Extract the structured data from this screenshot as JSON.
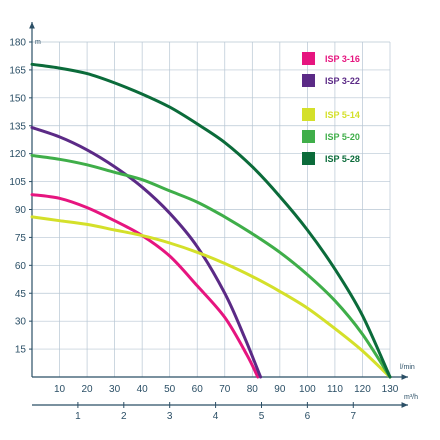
{
  "chart_data": {
    "type": "line",
    "grid": true,
    "legend_position": "top-right",
    "y_unit": "m",
    "x_unit_primary": "l/min",
    "x_unit_secondary": "m³/h",
    "ylim": [
      0,
      180
    ],
    "xlim": [
      0,
      130
    ],
    "y_ticks": [
      "15",
      "30",
      "45",
      "60",
      "75",
      "90",
      "105",
      "120",
      "135",
      "150",
      "165",
      "180"
    ],
    "x_ticks_primary": [
      "10",
      "20",
      "30",
      "40",
      "50",
      "60",
      "70",
      "80",
      "90",
      "100",
      "110",
      "120",
      "130"
    ],
    "x_ticks_secondary": [
      "1",
      "2",
      "3",
      "4",
      "5",
      "6",
      "7"
    ],
    "series": [
      {
        "name": "ISP 3-16",
        "color": "#e6157f",
        "points": [
          [
            0,
            98
          ],
          [
            10,
            96
          ],
          [
            20,
            91
          ],
          [
            30,
            84
          ],
          [
            40,
            76
          ],
          [
            50,
            65
          ],
          [
            60,
            49
          ],
          [
            70,
            32
          ],
          [
            78,
            12
          ],
          [
            82,
            0
          ]
        ]
      },
      {
        "name": "ISP 3-22",
        "color": "#5b2a86",
        "points": [
          [
            0,
            134
          ],
          [
            10,
            129
          ],
          [
            20,
            122
          ],
          [
            30,
            113
          ],
          [
            40,
            102
          ],
          [
            50,
            88
          ],
          [
            60,
            70
          ],
          [
            70,
            45
          ],
          [
            77,
            22
          ],
          [
            83,
            0
          ]
        ]
      },
      {
        "name": "ISP 5-14",
        "color": "#d4e02a",
        "points": [
          [
            0,
            86
          ],
          [
            10,
            84
          ],
          [
            20,
            82
          ],
          [
            30,
            79
          ],
          [
            40,
            76
          ],
          [
            50,
            72
          ],
          [
            60,
            67
          ],
          [
            70,
            61
          ],
          [
            80,
            54
          ],
          [
            90,
            46
          ],
          [
            100,
            37
          ],
          [
            110,
            26
          ],
          [
            120,
            14
          ],
          [
            130,
            0
          ]
        ]
      },
      {
        "name": "ISP 5-20",
        "color": "#3fae49",
        "points": [
          [
            0,
            119
          ],
          [
            10,
            117
          ],
          [
            20,
            114
          ],
          [
            30,
            110
          ],
          [
            40,
            106
          ],
          [
            50,
            100
          ],
          [
            60,
            94
          ],
          [
            70,
            86
          ],
          [
            80,
            77
          ],
          [
            90,
            67
          ],
          [
            100,
            55
          ],
          [
            110,
            41
          ],
          [
            120,
            23
          ],
          [
            130,
            0
          ]
        ]
      },
      {
        "name": "ISP 5-28",
        "color": "#0b6b3a",
        "points": [
          [
            0,
            168
          ],
          [
            10,
            166
          ],
          [
            20,
            163
          ],
          [
            30,
            158
          ],
          [
            40,
            152
          ],
          [
            50,
            145
          ],
          [
            60,
            136
          ],
          [
            70,
            126
          ],
          [
            80,
            113
          ],
          [
            90,
            97
          ],
          [
            100,
            79
          ],
          [
            110,
            58
          ],
          [
            120,
            33
          ],
          [
            130,
            0
          ]
        ]
      }
    ]
  }
}
